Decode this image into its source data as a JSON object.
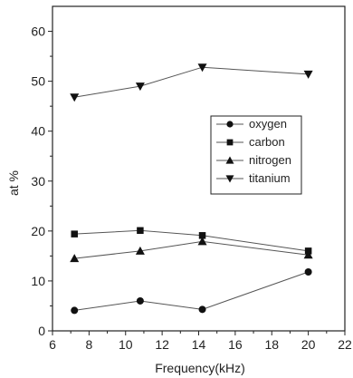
{
  "chart_data": {
    "type": "line",
    "title": "",
    "xlabel": "Frequency(kHz)",
    "ylabel": "at %",
    "xlim": [
      6,
      22
    ],
    "ylim": [
      0,
      65
    ],
    "xticks": [
      6,
      8,
      10,
      12,
      14,
      16,
      18,
      20,
      22
    ],
    "yticks": [
      0,
      10,
      20,
      30,
      40,
      50,
      60
    ],
    "x": [
      7.2,
      10.8,
      14.2,
      20
    ],
    "grid": false,
    "legend_position": "right",
    "series": [
      {
        "name": "oxygen",
        "marker": "circle",
        "values": [
          4.1,
          6.0,
          4.3,
          11.8
        ]
      },
      {
        "name": "carbon",
        "marker": "square",
        "values": [
          19.4,
          20.1,
          19.1,
          16.0
        ]
      },
      {
        "name": "nitrogen",
        "marker": "triangle-up",
        "values": [
          14.5,
          16.0,
          17.9,
          15.2
        ]
      },
      {
        "name": "titanium",
        "marker": "triangle-down",
        "values": [
          46.8,
          49.0,
          52.8,
          51.4
        ]
      }
    ],
    "colors": {
      "line": "#555555",
      "marker": "#111111",
      "axis": "#222222"
    }
  }
}
